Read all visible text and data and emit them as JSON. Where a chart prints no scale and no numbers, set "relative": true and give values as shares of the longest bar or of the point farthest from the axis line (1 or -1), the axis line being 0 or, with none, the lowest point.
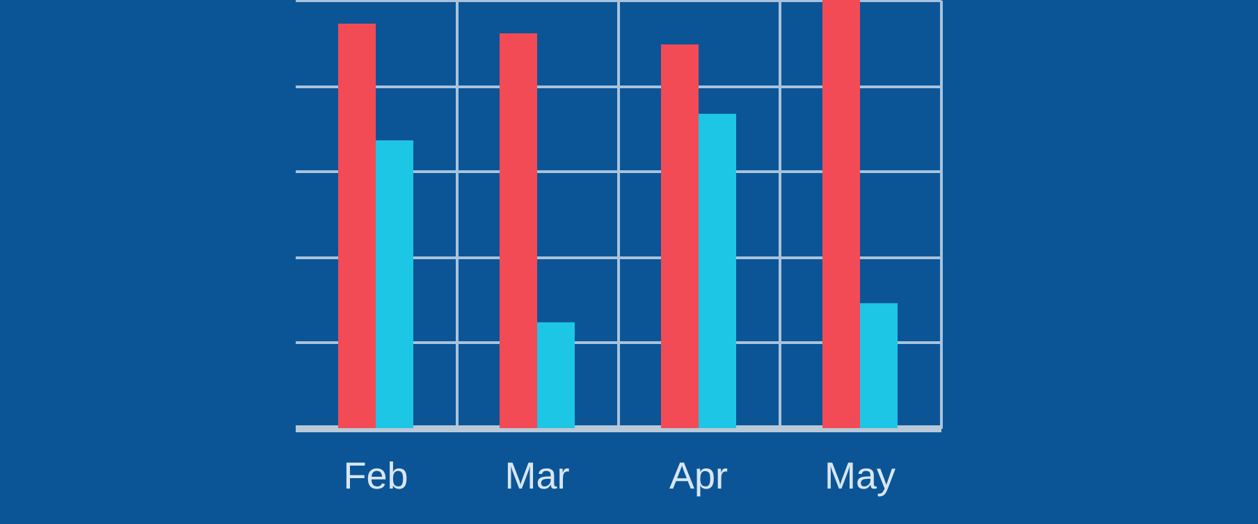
{
  "chart_data": {
    "type": "bar",
    "relative": true,
    "grid": true,
    "categories": [
      "Feb",
      "Mar",
      "Apr",
      "May"
    ],
    "series": [
      {
        "color": "#f24b56",
        "values": [
          0.945,
          0.922,
          0.896,
          1
        ]
      },
      {
        "color": "#1ec6e6",
        "values": [
          0.672,
          0.247,
          0.734,
          0.292
        ]
      }
    ]
  }
}
